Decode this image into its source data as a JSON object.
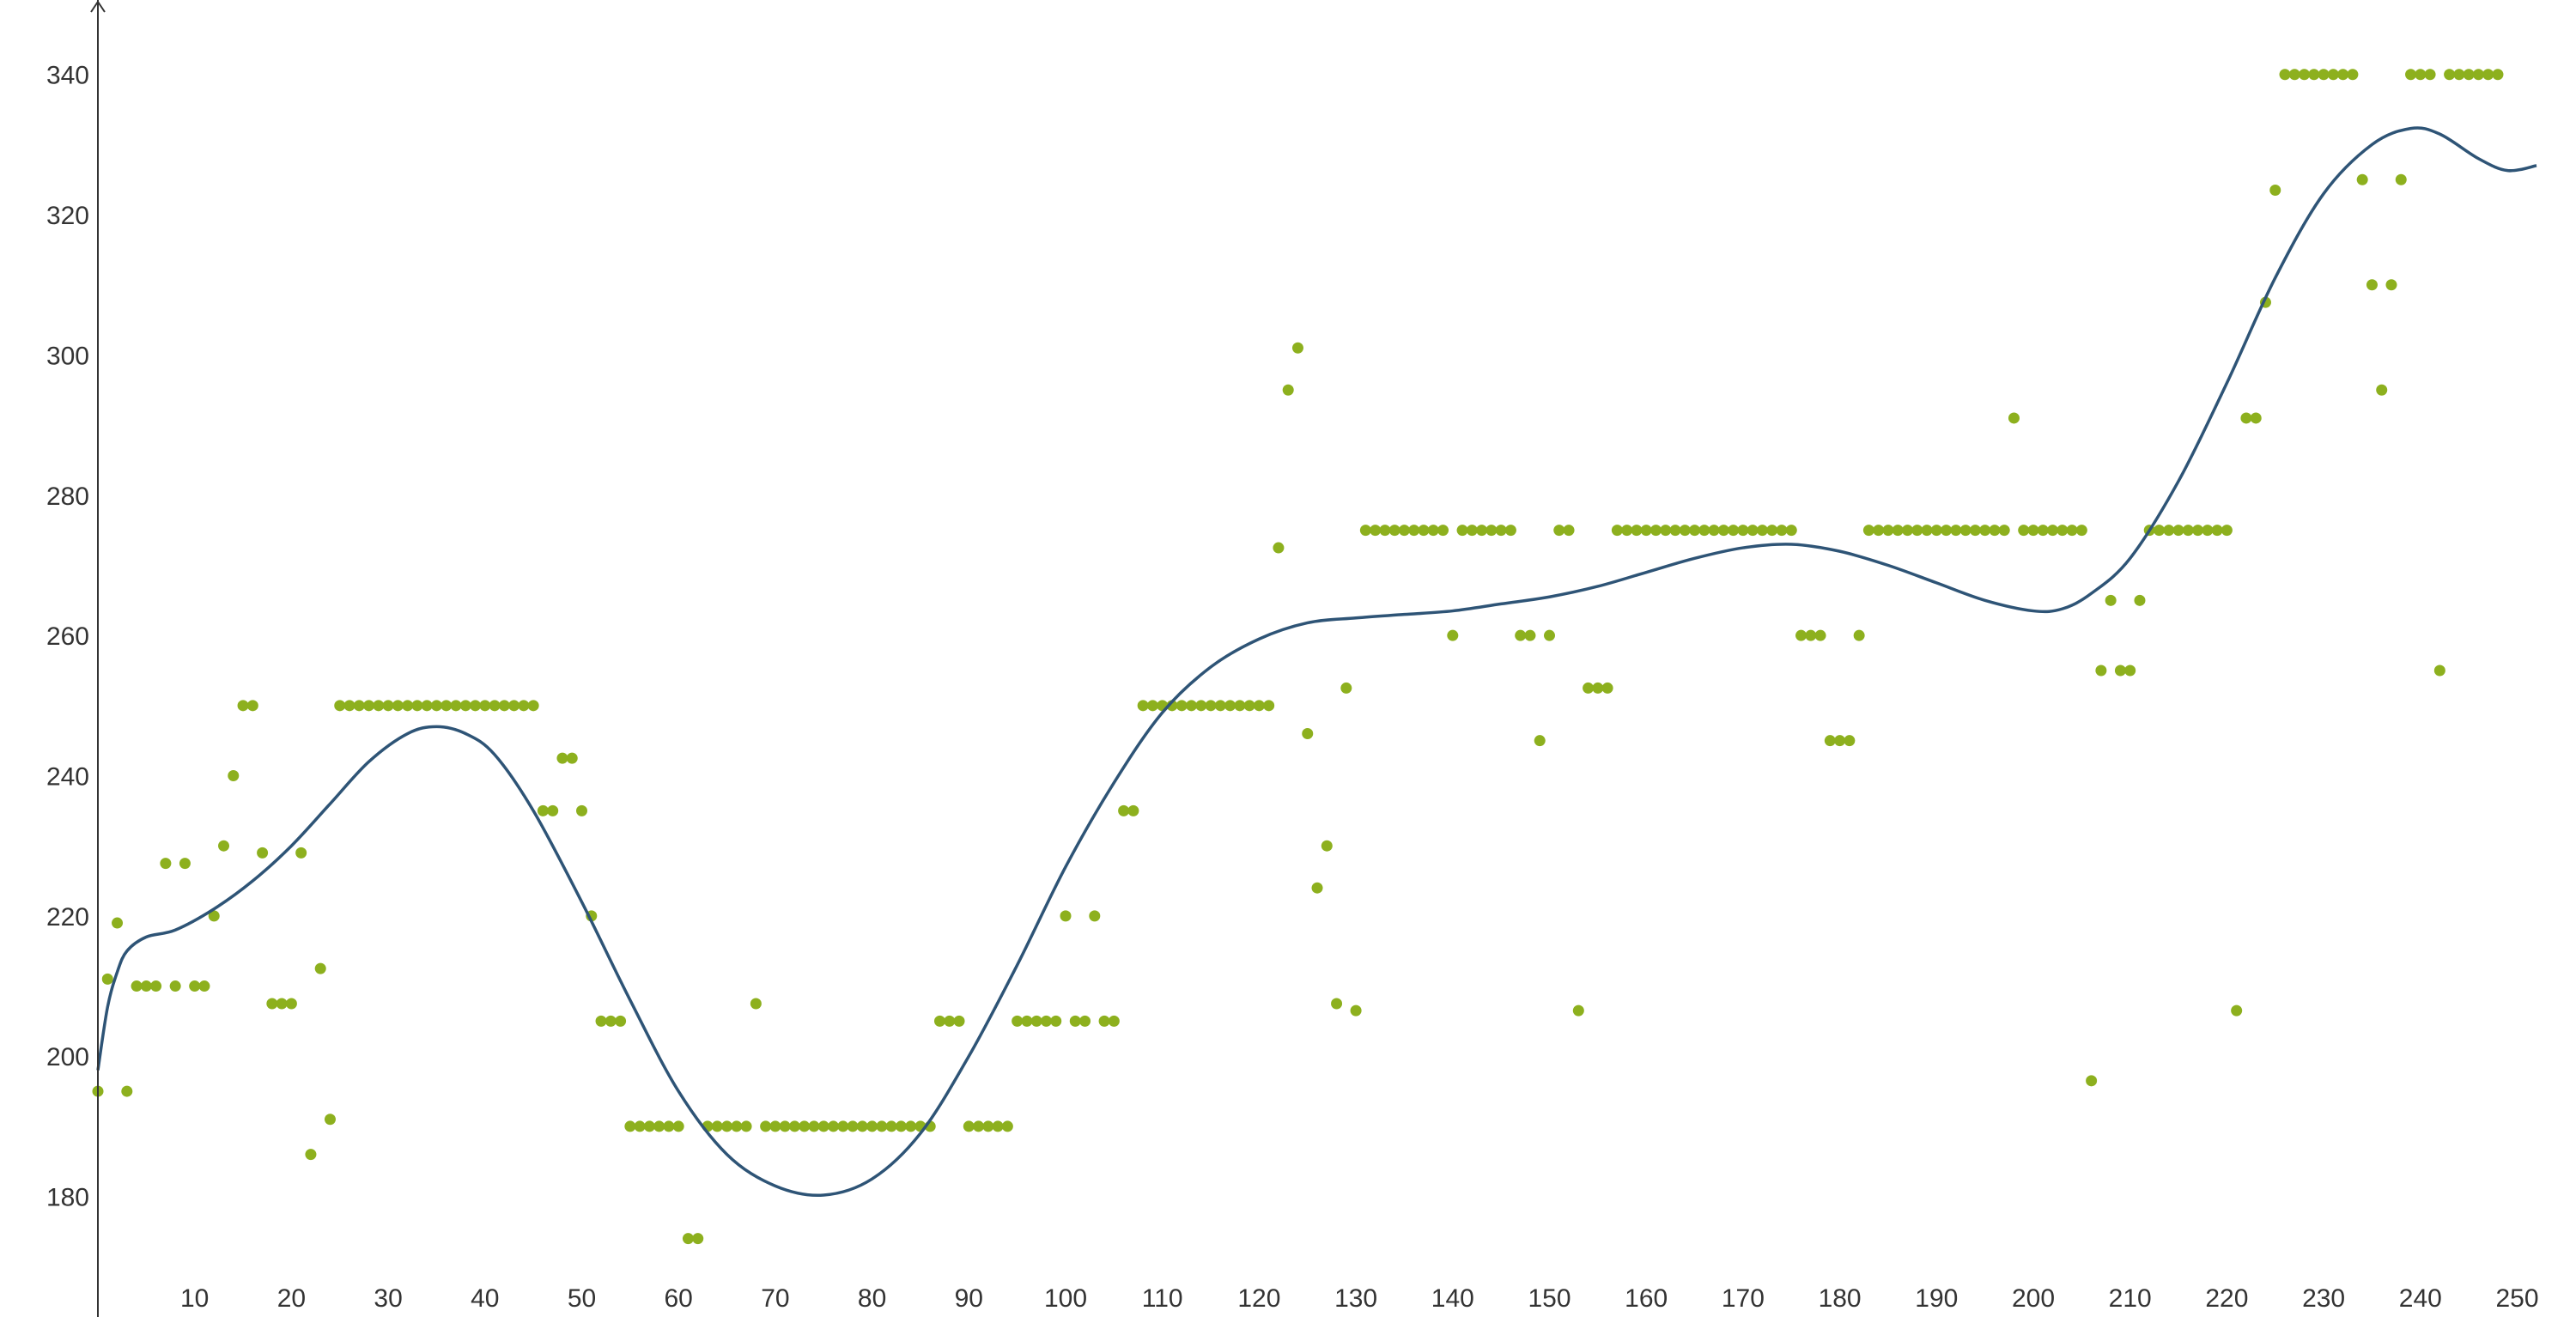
{
  "chart_data": {
    "type": "scatter",
    "title": "",
    "xlabel": "",
    "ylabel": "",
    "xlim": [
      0,
      253
    ],
    "ylim": [
      165,
      342
    ],
    "x_ticks": [
      10,
      20,
      30,
      40,
      50,
      60,
      70,
      80,
      90,
      100,
      110,
      120,
      130,
      140,
      150,
      160,
      170,
      180,
      190,
      200,
      210,
      220,
      230,
      240,
      250
    ],
    "y_ticks": [
      180,
      200,
      220,
      240,
      260,
      280,
      300,
      320,
      340
    ],
    "grid": false,
    "colors": {
      "points": "#8db01e",
      "curve": "#2e5476",
      "axis": "#333333"
    },
    "scatter": [
      [
        0,
        195
      ],
      [
        1,
        211
      ],
      [
        2,
        219
      ],
      [
        3,
        195
      ],
      [
        4,
        210
      ],
      [
        5,
        210
      ],
      [
        6,
        210
      ],
      [
        7,
        227.5
      ],
      [
        8,
        210
      ],
      [
        9,
        227.5
      ],
      [
        10,
        210
      ],
      [
        11,
        210
      ],
      [
        12,
        220
      ],
      [
        13,
        230
      ],
      [
        14,
        240
      ],
      [
        15,
        250
      ],
      [
        16,
        250
      ],
      [
        17,
        229
      ],
      [
        18,
        207.5
      ],
      [
        19,
        207.5
      ],
      [
        20,
        207.5
      ],
      [
        21,
        229
      ],
      [
        22,
        186
      ],
      [
        23,
        212.5
      ],
      [
        24,
        191
      ],
      [
        25,
        250
      ],
      [
        26,
        250
      ],
      [
        27,
        250
      ],
      [
        28,
        250
      ],
      [
        29,
        250
      ],
      [
        30,
        250
      ],
      [
        31,
        250
      ],
      [
        32,
        250
      ],
      [
        33,
        250
      ],
      [
        34,
        250
      ],
      [
        35,
        250
      ],
      [
        36,
        250
      ],
      [
        37,
        250
      ],
      [
        38,
        250
      ],
      [
        39,
        250
      ],
      [
        40,
        250
      ],
      [
        41,
        250
      ],
      [
        42,
        250
      ],
      [
        43,
        250
      ],
      [
        44,
        250
      ],
      [
        45,
        250
      ],
      [
        46,
        235
      ],
      [
        47,
        235
      ],
      [
        48,
        242.5
      ],
      [
        49,
        242.5
      ],
      [
        50,
        235
      ],
      [
        51,
        220
      ],
      [
        52,
        205
      ],
      [
        53,
        205
      ],
      [
        54,
        205
      ],
      [
        55,
        190
      ],
      [
        56,
        190
      ],
      [
        57,
        190
      ],
      [
        58,
        190
      ],
      [
        59,
        190
      ],
      [
        60,
        190
      ],
      [
        61,
        174
      ],
      [
        62,
        174
      ],
      [
        63,
        190
      ],
      [
        64,
        190
      ],
      [
        65,
        190
      ],
      [
        66,
        190
      ],
      [
        67,
        190
      ],
      [
        68,
        207.5
      ],
      [
        69,
        190
      ],
      [
        70,
        190
      ],
      [
        71,
        190
      ],
      [
        72,
        190
      ],
      [
        73,
        190
      ],
      [
        74,
        190
      ],
      [
        75,
        190
      ],
      [
        76,
        190
      ],
      [
        77,
        190
      ],
      [
        78,
        190
      ],
      [
        79,
        190
      ],
      [
        80,
        190
      ],
      [
        81,
        190
      ],
      [
        82,
        190
      ],
      [
        83,
        190
      ],
      [
        84,
        190
      ],
      [
        85,
        190
      ],
      [
        86,
        190
      ],
      [
        87,
        205
      ],
      [
        88,
        205
      ],
      [
        89,
        205
      ],
      [
        90,
        190
      ],
      [
        91,
        190
      ],
      [
        92,
        190
      ],
      [
        93,
        190
      ],
      [
        94,
        190
      ],
      [
        95,
        205
      ],
      [
        96,
        205
      ],
      [
        97,
        205
      ],
      [
        98,
        205
      ],
      [
        99,
        205
      ],
      [
        100,
        220
      ],
      [
        101,
        205
      ],
      [
        102,
        205
      ],
      [
        103,
        220
      ],
      [
        104,
        205
      ],
      [
        105,
        205
      ],
      [
        106,
        235
      ],
      [
        107,
        235
      ],
      [
        108,
        250
      ],
      [
        109,
        250
      ],
      [
        110,
        250
      ],
      [
        111,
        250
      ],
      [
        112,
        250
      ],
      [
        113,
        250
      ],
      [
        114,
        250
      ],
      [
        115,
        250
      ],
      [
        116,
        250
      ],
      [
        117,
        250
      ],
      [
        118,
        250
      ],
      [
        119,
        250
      ],
      [
        120,
        250
      ],
      [
        121,
        250
      ],
      [
        122,
        272.5
      ],
      [
        123,
        295
      ],
      [
        124,
        301
      ],
      [
        125,
        246
      ],
      [
        126,
        224
      ],
      [
        127,
        230
      ],
      [
        128,
        207.5
      ],
      [
        129,
        252.5
      ],
      [
        130,
        206.5
      ],
      [
        131,
        275
      ],
      [
        132,
        275
      ],
      [
        133,
        275
      ],
      [
        134,
        275
      ],
      [
        135,
        275
      ],
      [
        136,
        275
      ],
      [
        137,
        275
      ],
      [
        138,
        275
      ],
      [
        139,
        275
      ],
      [
        140,
        260
      ],
      [
        141,
        275
      ],
      [
        142,
        275
      ],
      [
        143,
        275
      ],
      [
        144,
        275
      ],
      [
        145,
        275
      ],
      [
        146,
        275
      ],
      [
        147,
        260
      ],
      [
        148,
        260
      ],
      [
        149,
        245
      ],
      [
        150,
        260
      ],
      [
        151,
        275
      ],
      [
        152,
        275
      ],
      [
        153,
        206.5
      ],
      [
        154,
        252.5
      ],
      [
        155,
        252.5
      ],
      [
        156,
        252.5
      ],
      [
        157,
        275
      ],
      [
        158,
        275
      ],
      [
        159,
        275
      ],
      [
        160,
        275
      ],
      [
        161,
        275
      ],
      [
        162,
        275
      ],
      [
        163,
        275
      ],
      [
        164,
        275
      ],
      [
        165,
        275
      ],
      [
        166,
        275
      ],
      [
        167,
        275
      ],
      [
        168,
        275
      ],
      [
        169,
        275
      ],
      [
        170,
        275
      ],
      [
        171,
        275
      ],
      [
        172,
        275
      ],
      [
        173,
        275
      ],
      [
        174,
        275
      ],
      [
        175,
        275
      ],
      [
        176,
        260
      ],
      [
        177,
        260
      ],
      [
        178,
        260
      ],
      [
        179,
        245
      ],
      [
        180,
        245
      ],
      [
        181,
        245
      ],
      [
        182,
        260
      ],
      [
        183,
        275
      ],
      [
        184,
        275
      ],
      [
        185,
        275
      ],
      [
        186,
        275
      ],
      [
        187,
        275
      ],
      [
        188,
        275
      ],
      [
        189,
        275
      ],
      [
        190,
        275
      ],
      [
        191,
        275
      ],
      [
        192,
        275
      ],
      [
        193,
        275
      ],
      [
        194,
        275
      ],
      [
        195,
        275
      ],
      [
        196,
        275
      ],
      [
        197,
        275
      ],
      [
        198,
        291
      ],
      [
        199,
        275
      ],
      [
        200,
        275
      ],
      [
        201,
        275
      ],
      [
        202,
        275
      ],
      [
        203,
        275
      ],
      [
        204,
        275
      ],
      [
        205,
        275
      ],
      [
        206,
        196.5
      ],
      [
        207,
        255
      ],
      [
        208,
        265
      ],
      [
        209,
        255
      ],
      [
        210,
        255
      ],
      [
        211,
        265
      ],
      [
        212,
        275
      ],
      [
        213,
        275
      ],
      [
        214,
        275
      ],
      [
        215,
        275
      ],
      [
        216,
        275
      ],
      [
        217,
        275
      ],
      [
        218,
        275
      ],
      [
        219,
        275
      ],
      [
        220,
        275
      ],
      [
        221,
        206.5
      ],
      [
        222,
        291
      ],
      [
        223,
        291
      ],
      [
        224,
        307.5
      ],
      [
        225,
        323.5
      ],
      [
        226,
        340
      ],
      [
        227,
        340
      ],
      [
        228,
        340
      ],
      [
        229,
        340
      ],
      [
        230,
        340
      ],
      [
        231,
        340
      ],
      [
        232,
        340
      ],
      [
        233,
        340
      ],
      [
        234,
        325
      ],
      [
        235,
        310
      ],
      [
        236,
        295
      ],
      [
        237,
        310
      ],
      [
        238,
        325
      ],
      [
        239,
        340
      ],
      [
        240,
        340
      ],
      [
        241,
        340
      ],
      [
        242,
        255
      ],
      [
        243,
        340
      ],
      [
        244,
        340
      ],
      [
        245,
        340
      ],
      [
        246,
        340
      ],
      [
        247,
        340
      ],
      [
        248,
        340
      ]
    ],
    "curve": [
      [
        0,
        198
      ],
      [
        1,
        207
      ],
      [
        2,
        212
      ],
      [
        3,
        215
      ],
      [
        5,
        217
      ],
      [
        8,
        218
      ],
      [
        12,
        221
      ],
      [
        16,
        225
      ],
      [
        20,
        230
      ],
      [
        24,
        236
      ],
      [
        28,
        242
      ],
      [
        32,
        246
      ],
      [
        35,
        247
      ],
      [
        38,
        246
      ],
      [
        41,
        243
      ],
      [
        45,
        235
      ],
      [
        50,
        222
      ],
      [
        55,
        208
      ],
      [
        60,
        195
      ],
      [
        65,
        186
      ],
      [
        70,
        181.5
      ],
      [
        75,
        180.2
      ],
      [
        80,
        182.5
      ],
      [
        85,
        189
      ],
      [
        90,
        200
      ],
      [
        95,
        213
      ],
      [
        100,
        227
      ],
      [
        105,
        239
      ],
      [
        110,
        249
      ],
      [
        115,
        255.5
      ],
      [
        120,
        259.5
      ],
      [
        125,
        261.8
      ],
      [
        130,
        262.5
      ],
      [
        135,
        263
      ],
      [
        140,
        263.5
      ],
      [
        145,
        264.5
      ],
      [
        150,
        265.5
      ],
      [
        155,
        267
      ],
      [
        160,
        269
      ],
      [
        165,
        271
      ],
      [
        170,
        272.5
      ],
      [
        175,
        273
      ],
      [
        180,
        272
      ],
      [
        185,
        270
      ],
      [
        190,
        267.5
      ],
      [
        195,
        265
      ],
      [
        200,
        263.5
      ],
      [
        203,
        263.8
      ],
      [
        206,
        266
      ],
      [
        210,
        271
      ],
      [
        215,
        282
      ],
      [
        220,
        296
      ],
      [
        225,
        311
      ],
      [
        230,
        323
      ],
      [
        235,
        330
      ],
      [
        239,
        332.3
      ],
      [
        242,
        331.5
      ],
      [
        246,
        328
      ],
      [
        249,
        326.3
      ],
      [
        252,
        327
      ]
    ]
  }
}
